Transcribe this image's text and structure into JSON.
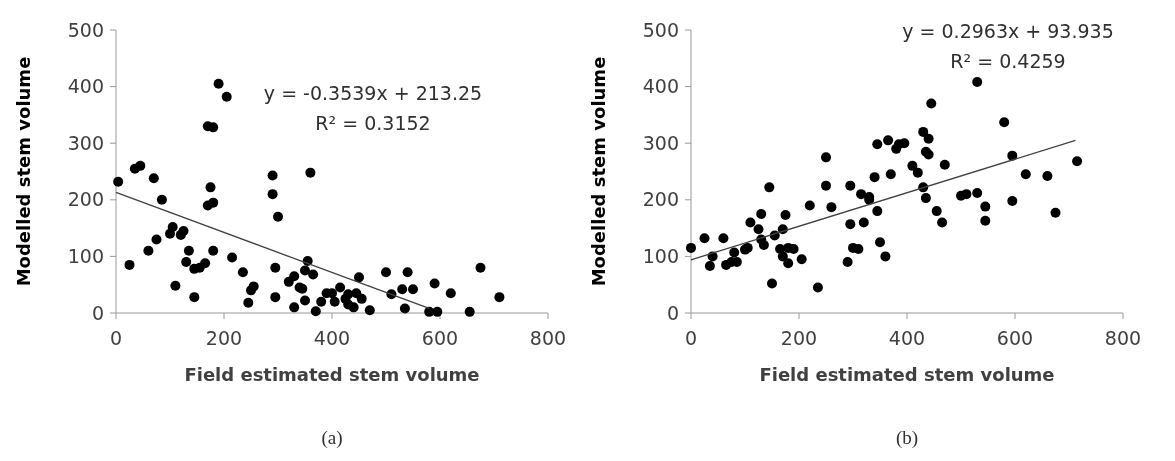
{
  "chart_data": [
    {
      "type": "scatter",
      "xlabel": "Field estimated stem volume",
      "ylabel": "Modelled stem volume",
      "xlim": [
        0,
        800
      ],
      "ylim": [
        0,
        500
      ],
      "xticks": [
        0,
        200,
        400,
        600,
        800
      ],
      "yticks": [
        0,
        100,
        200,
        300,
        400,
        500
      ],
      "grid": false,
      "marker": "circle",
      "annotations": [
        "y = -0.3539x + 213.25",
        "R² = 0.3152",
        "(a)"
      ],
      "series": [
        {
          "color": "#000000",
          "x": [
            4,
            25,
            35,
            45,
            60,
            70,
            75,
            85,
            100,
            105,
            110,
            120,
            125,
            130,
            135,
            145,
            145,
            155,
            170,
            175,
            180,
            165,
            180,
            170,
            180,
            190,
            205,
            215,
            235,
            245,
            250,
            255,
            290,
            290,
            300,
            295,
            295,
            320,
            330,
            330,
            340,
            345,
            350,
            350,
            355,
            360,
            365,
            370,
            380,
            390,
            400,
            405,
            415,
            425,
            430,
            430,
            440,
            445,
            450,
            455,
            470,
            500,
            510,
            530,
            535,
            540,
            550,
            580,
            590,
            595,
            620,
            655,
            675,
            710
          ],
          "values": [
            232,
            85,
            255,
            260,
            110,
            238,
            130,
            200,
            140,
            152,
            48,
            138,
            145,
            90,
            110,
            28,
            78,
            80,
            190,
            222,
            195,
            88,
            110,
            330,
            328,
            405,
            382,
            98,
            72,
            18,
            40,
            47,
            243,
            210,
            170,
            80,
            28,
            55,
            65,
            10,
            45,
            43,
            22,
            75,
            92,
            248,
            68,
            3,
            20,
            35,
            35,
            20,
            45,
            25,
            33,
            15,
            10,
            35,
            63,
            25,
            5,
            72,
            33,
            42,
            8,
            72,
            42,
            2,
            52,
            2,
            35,
            2,
            80,
            28
          ]
        },
        {
          "type": "line",
          "color": "#404040",
          "marker": "none",
          "x": [
            0,
            580
          ],
          "values": [
            213,
            8
          ]
        }
      ]
    },
    {
      "type": "scatter",
      "xlabel": "Field estimated stem volume",
      "ylabel": "Modelled stem volume",
      "xlim": [
        0,
        800
      ],
      "ylim": [
        0,
        500
      ],
      "xticks": [
        0,
        200,
        400,
        600,
        800
      ],
      "yticks": [
        0,
        100,
        200,
        300,
        400,
        500
      ],
      "grid": false,
      "marker": "circle",
      "annotations": [
        "y = 0.2963x + 93.935",
        "R² = 0.4259",
        "(b)"
      ],
      "series": [
        {
          "color": "#000000",
          "x": [
            0,
            25,
            35,
            40,
            60,
            65,
            75,
            80,
            85,
            100,
            105,
            110,
            125,
            130,
            130,
            135,
            145,
            150,
            155,
            165,
            170,
            170,
            175,
            180,
            180,
            190,
            205,
            220,
            235,
            250,
            250,
            260,
            290,
            295,
            295,
            300,
            310,
            315,
            320,
            330,
            330,
            340,
            345,
            350,
            345,
            360,
            365,
            370,
            380,
            385,
            395,
            410,
            420,
            430,
            435,
            430,
            435,
            440,
            440,
            445,
            455,
            465,
            470,
            500,
            510,
            530,
            530,
            545,
            545,
            580,
            595,
            595,
            620,
            660,
            675,
            715
          ],
          "values": [
            115,
            132,
            83,
            100,
            132,
            85,
            90,
            107,
            90,
            112,
            115,
            160,
            148,
            175,
            130,
            120,
            222,
            52,
            137,
            113,
            100,
            148,
            173,
            115,
            88,
            113,
            95,
            190,
            45,
            275,
            225,
            187,
            90,
            157,
            225,
            115,
            113,
            210,
            160,
            205,
            200,
            240,
            180,
            125,
            298,
            100,
            305,
            245,
            290,
            298,
            300,
            260,
            248,
            320,
            285,
            222,
            203,
            280,
            308,
            370,
            180,
            160,
            262,
            207,
            210,
            408,
            212,
            163,
            188,
            337,
            278,
            198,
            245,
            242,
            177,
            268
          ]
        },
        {
          "type": "line",
          "color": "#404040",
          "marker": "none",
          "x": [
            0,
            712
          ],
          "values": [
            94,
            305
          ]
        }
      ]
    }
  ]
}
